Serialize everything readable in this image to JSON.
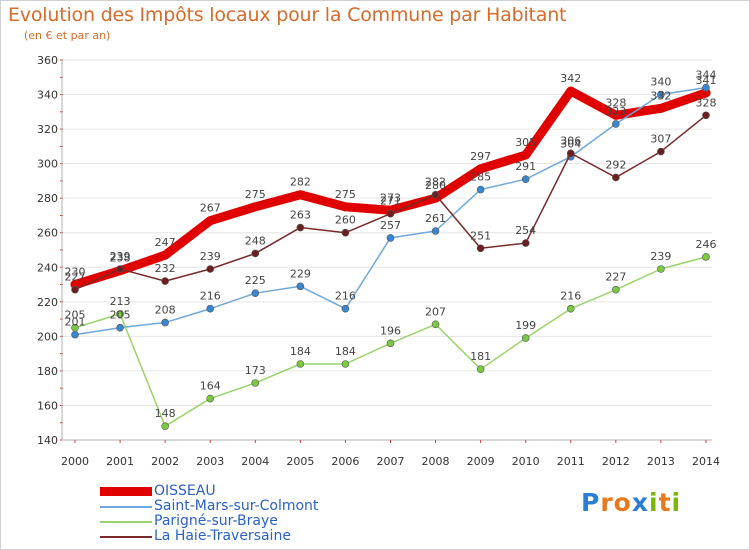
{
  "title": "Evolution des Impôts locaux pour la Commune par Habitant",
  "subtitle": "(en € et par an)",
  "logo": {
    "text": "Proxiti",
    "letters": [
      "P",
      "r",
      "o",
      "x",
      "i",
      "t",
      "i"
    ],
    "colors": [
      "#2a7fd4",
      "#e87a1e",
      "#e87a1e",
      "#2a7fd4",
      "#7ab800",
      "#e87a1e",
      "#7ab800"
    ]
  },
  "colors": {
    "title": "#d86a2a",
    "axis": "#b0b0b0",
    "grid": "#e6e6e6",
    "label": "#444444",
    "legend_text": "#2a62c7"
  },
  "chart_data": {
    "type": "line",
    "x": [
      "2000",
      "2001",
      "2002",
      "2003",
      "2004",
      "2005",
      "2006",
      "2007",
      "2008",
      "2009",
      "2010",
      "2011",
      "2012",
      "2013",
      "2014"
    ],
    "ylim": [
      140,
      360
    ],
    "yticks": [
      140,
      160,
      180,
      200,
      220,
      240,
      260,
      280,
      300,
      320,
      340,
      360
    ],
    "grid": true,
    "legend_position": "bottom-left",
    "series": [
      {
        "name": "OISSEAU",
        "color": "#e00000",
        "marker_color": "#e00000",
        "width": "thick",
        "values": [
          230,
          238,
          247,
          267,
          275,
          282,
          275,
          273,
          280,
          297,
          305,
          342,
          328,
          332,
          341
        ],
        "labels": [
          "230",
          "238",
          "247",
          "267",
          "275",
          "282",
          "275",
          "273",
          "280",
          "297",
          "305",
          "342",
          "328",
          "332",
          "341"
        ]
      },
      {
        "name": "Saint-Mars-sur-Colmont",
        "color": "#6fa8dc",
        "marker_color": "#3a86d1",
        "width": "thin",
        "values": [
          201,
          205,
          208,
          216,
          225,
          229,
          216,
          257,
          261,
          285,
          291,
          304,
          323,
          340,
          344
        ],
        "labels": [
          "201",
          "205",
          "208",
          "216",
          "225",
          "229",
          "216",
          "257",
          "261",
          "285",
          "291",
          "304",
          "323",
          "340",
          "344"
        ]
      },
      {
        "name": "Parigné-sur-Braye",
        "color": "#9ad36b",
        "marker_color": "#7ac943",
        "width": "thin",
        "values": [
          205,
          213,
          148,
          164,
          173,
          184,
          184,
          196,
          207,
          181,
          199,
          216,
          227,
          239,
          246
        ],
        "labels": [
          "205",
          "213",
          "148",
          "164",
          "173",
          "184",
          "184",
          "196",
          "207",
          "181",
          "199",
          "216",
          "227",
          "239",
          "246"
        ]
      },
      {
        "name": "La Haie-Traversaine",
        "color": "#7a2a2a",
        "marker_color": "#6b1f1f",
        "width": "thin",
        "values": [
          227,
          239,
          232,
          239,
          248,
          263,
          260,
          271,
          282,
          251,
          254,
          306,
          292,
          307,
          328
        ],
        "labels": [
          "227",
          "239",
          "232",
          "239",
          "248",
          "263",
          "260",
          "271",
          "282",
          "251",
          "254",
          "306",
          "292",
          "307",
          "328"
        ]
      }
    ]
  }
}
